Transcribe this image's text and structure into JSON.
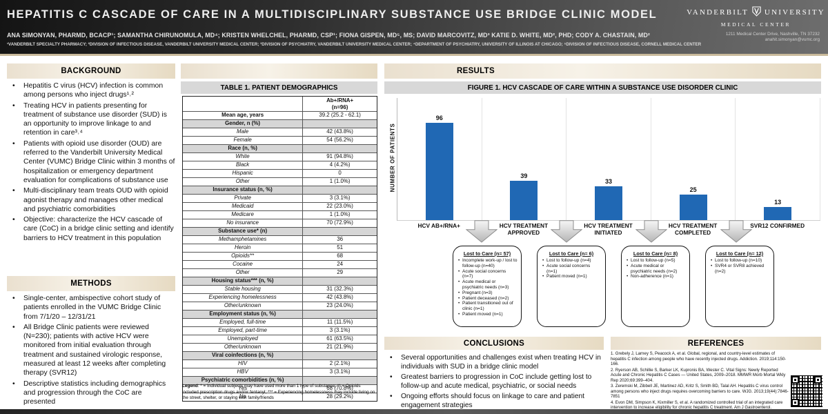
{
  "header": {
    "title": "HEPATITIS C CASCADE OF CARE IN A MULTIDISCIPLINARY SUBSTANCE USE BRIDGE CLINIC MODEL",
    "authors": "ANA SIMONYAN, PHARMD, BCACP¹; SAMANTHA CHIRUNOMULA, MD⁴; KRISTEN WHELCHEL, PHARMD, CSP¹; FIONA GISPEN, MD⁵, MS; DAVID MARCOVITZ, MD³ KATIE D. WHITE, MD², PHD; CODY A. CHASTAIN, MD²",
    "affiliations": "¹VANDERBILT SPECIALTY PHARMACY; ²DIVISION OF INFECTIOUS DISEASE, VANDERBILT UNIVERSITY MEDICAL CENTER; ³DIVISION OF PSYCHIATRY, VANDERBILT UNIVERSITY MEDICAL CENTER; ⁴DEPARTMENT OF PSYCHIATRY, UNIVERSITY OF ILLINOIS AT CHICAGO; ⁵DIVISION OF INFECTIOUS DISEASE, CORNELL MEDICAL CENTER",
    "logo": {
      "name_left": "VANDERBILT",
      "name_right": "UNIVERSITY",
      "line2": "MEDICAL CENTER",
      "address": "1211 Medical Center Drive, Nashville, TN 37232",
      "email": "anahit.simonyan@vumc.org"
    }
  },
  "background": {
    "heading": "BACKGROUND",
    "bullets": [
      "Hepatitis C virus (HCV) infection is common among persons who inject drugs¹˒²",
      "Treating HCV in patients presenting for treatment of substance use disorder (SUD) is an opportunity to improve linkage to and retention in care³˒⁴",
      "Patients with opioid use disorder (OUD) are referred to the Vanderbilt University Medical Center (VUMC) Bridge Clinic within 3 months of hospitalization or emergency department evaluation for complications of substance use",
      "Multi-disciplinary team treats OUD with opioid agonist therapy and manages other medical and psychiatric comorbidities",
      "Objective: characterize the HCV cascade of care (CoC) in a bridge clinic setting and identify barriers to HCV treatment in this population"
    ]
  },
  "methods": {
    "heading": "METHODS",
    "bullets": [
      "Single-center, ambispective cohort study of patients enrolled in the VUMC Bridge Clinic from 7/1/20 – 12/31/21",
      "All Bridge Clinic patients were reviewed (N=230); patients with active HCV were monitored from initial evaluation through treatment and sustained virologic response, measured at least 12 weeks after completing therapy (SVR12)",
      "Descriptive statistics including demographics and progression through the CoC are presented"
    ]
  },
  "table1": {
    "title": "TABLE 1. PATIENT DEMOGRAPHICS",
    "col_header_line1": "Ab+/RNA+",
    "col_header_line2": "(n=96)",
    "rows": [
      {
        "type": "bold",
        "label": "Mean age, years",
        "value": "39.2 (25.2 - 62.1)"
      },
      {
        "type": "section",
        "label": "Gender, n (%)",
        "value": ""
      },
      {
        "type": "item",
        "label": "Male",
        "value": "42 (43.8%)"
      },
      {
        "type": "item",
        "label": "Female",
        "value": "54 (56.2%)"
      },
      {
        "type": "section",
        "label": "Race (n, %)",
        "value": ""
      },
      {
        "type": "item",
        "label": "White",
        "value": "91 (94.8%)"
      },
      {
        "type": "item",
        "label": "Black",
        "value": "4 (4.2%)"
      },
      {
        "type": "item",
        "label": "Hispanic",
        "value": "0"
      },
      {
        "type": "item",
        "label": "Other",
        "value": "1 (1.0%)"
      },
      {
        "type": "section",
        "label": "Insurance status (n, %)",
        "value": ""
      },
      {
        "type": "item",
        "label": "Private",
        "value": "3 (3.1%)"
      },
      {
        "type": "item",
        "label": "Medicaid",
        "value": "22 (23.0%)"
      },
      {
        "type": "item",
        "label": "Medicare",
        "value": "1 (1.0%)"
      },
      {
        "type": "item",
        "label": "No insurance",
        "value": "70 (72.9%)"
      },
      {
        "type": "section",
        "label": "Substance use* (n)",
        "value": ""
      },
      {
        "type": "item",
        "label": "Methamphetamines",
        "value": "36"
      },
      {
        "type": "item",
        "label": "Heroin",
        "value": "51"
      },
      {
        "type": "item",
        "label": "Opioids**",
        "value": "68"
      },
      {
        "type": "item",
        "label": "Cocaine",
        "value": "24"
      },
      {
        "type": "item",
        "label": "Other",
        "value": "29"
      },
      {
        "type": "section",
        "label": "Housing status*** (n, %)",
        "value": ""
      },
      {
        "type": "item",
        "label": "Stable housing",
        "value": "31 (32.3%)"
      },
      {
        "type": "item",
        "label": "Experiencing homelessness",
        "value": "42 (43.8%)"
      },
      {
        "type": "item",
        "label": "Other/unknown",
        "value": "23 (24.0%)"
      },
      {
        "type": "section",
        "label": "Employment status (n, %)",
        "value": ""
      },
      {
        "type": "item",
        "label": "Employed, full-time",
        "value": "11 (11.5%)"
      },
      {
        "type": "item",
        "label": "Employed, part-time",
        "value": "3 (3.1%)"
      },
      {
        "type": "item",
        "label": "Unemployed",
        "value": "61 (63.5%)"
      },
      {
        "type": "item",
        "label": "Other/unknown",
        "value": "21 (21.9%)"
      },
      {
        "type": "section",
        "label": "Viral coinfections (n, %)",
        "value": ""
      },
      {
        "type": "item",
        "label": "HIV",
        "value": "2 (2.1%)"
      },
      {
        "type": "item",
        "label": "HBV",
        "value": "3 (3.1%)"
      },
      {
        "type": "section",
        "label": "Psychiatric comorbidities (n, %)",
        "value": ""
      },
      {
        "type": "item",
        "label": "Yes",
        "value": "68 (70.8%)"
      },
      {
        "type": "item",
        "label": "No",
        "value": "28 (29.2%)"
      }
    ],
    "legend_label": "Legend",
    "legend_text": ": * = Individual subjects may have used more than 1 type of substance; ** = Opioids included prescription drugs and/or fentanyl; *** = Experiencing homelessness may include living on the street, shelter, or staying with family/friends"
  },
  "results": {
    "heading": "RESULTS"
  },
  "figure": {
    "title": "FIGURE 1. HCV CASCADE OF CARE WITHIN A SUBSTANCE USE DISORDER CLINIC"
  },
  "chart_data": {
    "type": "bar",
    "title": "FIGURE 1. HCV CASCADE OF CARE WITHIN A SUBSTANCE USE DISORDER CLINIC",
    "categories": [
      "HCV AB+/RNA+",
      "HCV TREATMENT APPROVED",
      "HCV TREATMENT INITIATED",
      "HCV TREATMENT COMPLETED",
      "SVR12 CONFIRMED"
    ],
    "values": [
      96,
      39,
      33,
      25,
      13
    ],
    "xlabel": "",
    "ylabel": "NUMBER OF PATIENTS",
    "ylim": [
      0,
      120
    ],
    "grid": "vertical category separators only",
    "legend_position": "none",
    "value_labels": true,
    "bar_color": "#2068b4"
  },
  "lost_to_care": [
    {
      "title": "Lost to Care (n= 57)",
      "items": [
        "Incomplete work-up / lost to follow-up (n=40)",
        "Acute social concerns (n=7)",
        "Acute medical or psychiatric needs (n=3)",
        "Pregnant (n=3)",
        "Patient deceased (n=2)",
        "Patient transitioned out of clinic (n=1)",
        "Patient moved (n=1)"
      ]
    },
    {
      "title": "Lost to Care (n= 6)",
      "items": [
        "Lost to follow-up (n=4)",
        "Acute social concerns (n=1)",
        "Patient moved (n=1)"
      ]
    },
    {
      "title": "Lost to Care (n= 8)",
      "items": [
        "Lost to follow-up (n=5)",
        "Acute medical or psychiatric needs (n=2)",
        "Non-adherence (n=1)"
      ]
    },
    {
      "title": "Lost to Care (n= 12)",
      "items": [
        "Lost to follow-up (n=10)",
        "SVR4 or SVR8 achieved (n=2)"
      ]
    }
  ],
  "conclusions": {
    "heading": "CONCLUSIONS",
    "bullets": [
      "Several opportunities and challenges exist when treating HCV in individuals with SUD in a bridge clinic model",
      "Greatest barriers to progression in CoC include getting lost to follow-up and acute medical, psychiatric, or social needs",
      "Ongoing efforts should focus on linkage to care and patient engagement strategies"
    ]
  },
  "references": {
    "heading": "REFERENCES",
    "items": [
      "1. Grebely J, Larney S, Peacock A, et al. Global, regional, and country-level estimates of hepatitis C infection among people who have recently injected drugs. Addiction. 2019;114:150-166.",
      "2. Ryerson AB, Schillie S, Barker LK, Kupronis BA, Wester C. Vital Signs: Newly Reported Acute and Chronic Hepatitis C Cases — United States, 2009–2018. MMWR Morb Mortal Wkly Rep 2020;69:399–404.",
      "3. Zeremski M, Zibbell JE, Martinez AD, Kritz S, Smith BD, Talal AH. Hepatitis C virus control among persons who inject drugs requires overcoming barriers to care. WJG. 2013;19(44):7846-7851",
      "4. Evon DM, Simpson K, Kixmiller S, et al. A randomized controlled trial of an integrated care intervention to increase eligibility for chronic hepatitis C treatment. Am J Gastroenterol. 2011;106(10):1777-1786. doi:10.1038/ajg.2011.219"
    ]
  },
  "colors": {
    "bar_blue": "#2068b4",
    "band_beige": "#ecdfc8",
    "title_bar_gray": "#d8d8d8",
    "banner_dark": "#2e2e2e",
    "accent_tan": "#c9ba9b"
  }
}
